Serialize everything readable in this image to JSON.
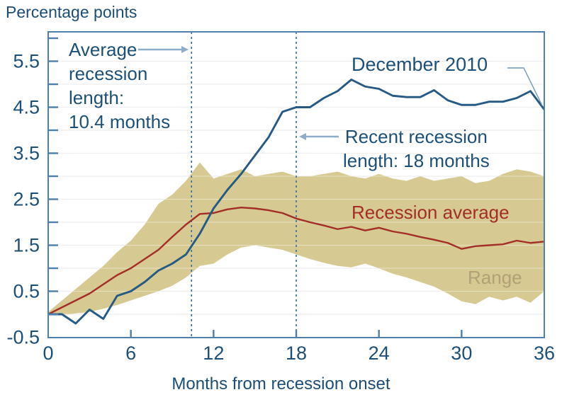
{
  "title": "Percentage points",
  "xlabel": "Months from recession onset",
  "annotations": {
    "average_length": "Average\nrecession\nlength:\n10.4 months",
    "december_2010": "December 2010",
    "recent_length": "Recent recession\nlength: 18 months",
    "recession_average": "Recession average",
    "range": "Range"
  },
  "colors": {
    "december_2010_line": "#265a84",
    "recession_average_line": "#a32e27",
    "range_band": "#d2c689",
    "axis_frame": "#4f80ab",
    "gridline": "#e2e2e2",
    "dashed_vline": "#2f6ea5",
    "text_blue": "#1d5078",
    "arrow": "#8fadc8",
    "range_label": "#b3a077"
  },
  "chart_data": {
    "type": "line",
    "title": "Percentage points",
    "xlabel": "Months from recession onset",
    "x_unit": "months from recession onset, 0 to 36 in steps of 1",
    "xlim": [
      0,
      36
    ],
    "ylim": [
      -0.5,
      6.15
    ],
    "x_ticks": [
      0,
      6,
      12,
      18,
      24,
      30,
      36
    ],
    "y_ticks": [
      -0.5,
      0.5,
      1.5,
      2.5,
      3.5,
      4.5,
      5.5
    ],
    "grid": "horizontal gridlines every 0.5",
    "series": [
      {
        "name": "December 2010",
        "color": "#265a84",
        "values": [
          0.0,
          0.0,
          -0.2,
          0.1,
          -0.1,
          0.4,
          0.5,
          0.7,
          0.95,
          1.1,
          1.3,
          1.75,
          2.3,
          2.7,
          3.05,
          3.45,
          3.85,
          4.4,
          4.5,
          4.5,
          4.7,
          4.85,
          5.1,
          4.95,
          4.9,
          4.75,
          4.72,
          4.72,
          4.87,
          4.65,
          4.55,
          4.55,
          4.62,
          4.62,
          4.7,
          4.85,
          4.45
        ]
      },
      {
        "name": "Recession average",
        "color": "#a32e27",
        "values": [
          0.0,
          0.15,
          0.3,
          0.45,
          0.65,
          0.85,
          1.0,
          1.2,
          1.4,
          1.68,
          1.95,
          2.18,
          2.2,
          2.28,
          2.32,
          2.3,
          2.26,
          2.2,
          2.08,
          2.0,
          1.93,
          1.85,
          1.9,
          1.82,
          1.88,
          1.8,
          1.75,
          1.68,
          1.62,
          1.55,
          1.42,
          1.48,
          1.5,
          1.52,
          1.6,
          1.55,
          1.58
        ]
      }
    ],
    "band": {
      "name": "Range",
      "color": "#d2c689",
      "upper": [
        0.05,
        0.3,
        0.55,
        0.8,
        1.05,
        1.35,
        1.6,
        1.95,
        2.4,
        2.6,
        2.9,
        3.3,
        2.95,
        3.05,
        3.15,
        3.0,
        3.05,
        3.1,
        3.0,
        3.0,
        3.05,
        3.1,
        3.0,
        2.95,
        3.05,
        2.95,
        2.9,
        3.0,
        2.9,
        2.95,
        3.0,
        2.85,
        2.9,
        3.05,
        3.15,
        3.1,
        3.0
      ],
      "lower": [
        0.0,
        -0.02,
        0.02,
        0.05,
        0.12,
        0.2,
        0.3,
        0.4,
        0.5,
        0.62,
        0.8,
        1.05,
        1.1,
        1.3,
        1.45,
        1.5,
        1.45,
        1.4,
        1.3,
        1.2,
        1.12,
        1.05,
        1.02,
        1.1,
        1.0,
        0.88,
        0.8,
        0.7,
        0.6,
        0.45,
        0.28,
        0.22,
        0.38,
        0.3,
        0.38,
        0.25,
        0.5
      ]
    },
    "vlines": [
      {
        "x": 10.4,
        "label": "Average recession length: 10.4 months"
      },
      {
        "x": 18,
        "label": "Recent recession length: 18 months"
      }
    ]
  }
}
